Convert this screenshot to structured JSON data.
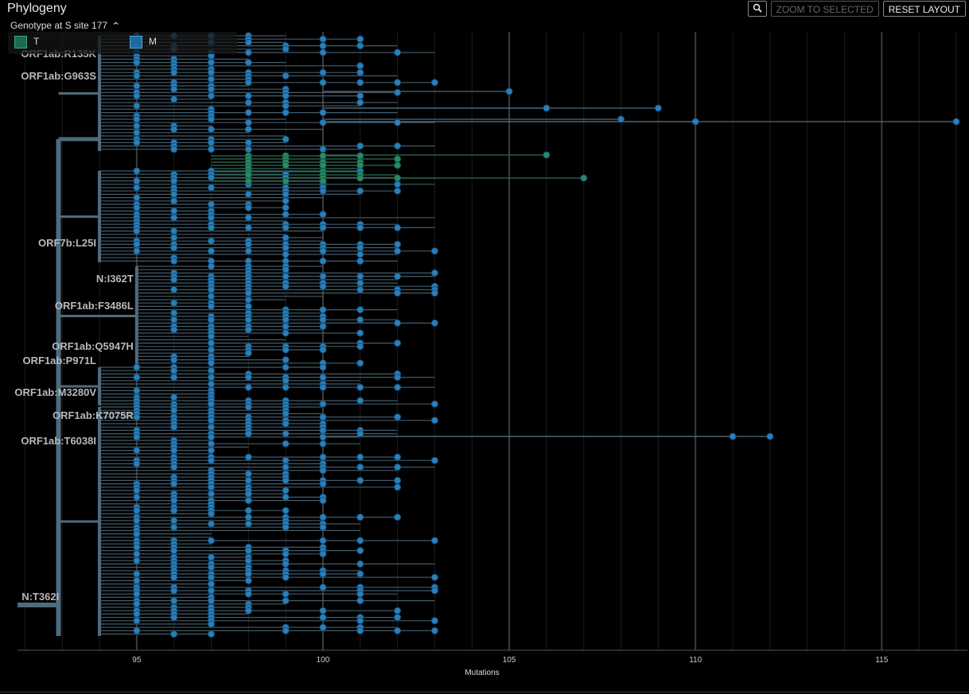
{
  "panel": {
    "title": "Phylogeny",
    "zoom_icon": "magnifier-icon",
    "zoom_to_selected_label": "ZOOM TO SELECTED",
    "reset_layout_label": "RESET LAYOUT"
  },
  "legend": {
    "title": "Genotype at S site 177",
    "toggle_icon": "chevron-up-icon",
    "items": [
      {
        "label": "T",
        "color": "#1b6b4f"
      },
      {
        "label": "M",
        "color": "#1f6aa0"
      }
    ]
  },
  "chart_data": {
    "type": "scatter",
    "xlabel": "Mutations",
    "xlim": [
      91.8,
      117.3
    ],
    "x_ticks": [
      95,
      100,
      105,
      110,
      115
    ],
    "grid": true,
    "colors": {
      "M": "#2c7fb8",
      "T": "#2a8a66",
      "branch": "#4f6b7d",
      "background": "#000000"
    },
    "branch_labels": [
      {
        "label": "ORF1ab:R135K",
        "x": 94
      },
      {
        "label": "ORF1ab:G963S",
        "x": 94
      },
      {
        "label": "ORF7b:L25I",
        "x": 94
      },
      {
        "label": "N:I362T",
        "x": 95
      },
      {
        "label": "ORF1ab:F3486L",
        "x": 95
      },
      {
        "label": "ORF1ab:Q5947H",
        "x": 95
      },
      {
        "label": "ORF1ab:P971L",
        "x": 94
      },
      {
        "label": "ORF1ab:M3280V",
        "x": 94
      },
      {
        "label": "ORF1ab:K7075R",
        "x": 95
      },
      {
        "label": "ORF1ab:T6038I",
        "x": 94
      },
      {
        "label": "N:T362I",
        "x": 93
      }
    ],
    "notable_tips": [
      {
        "x": 117,
        "genotype": "M"
      },
      {
        "x": 112,
        "genotype": "M"
      },
      {
        "x": 111,
        "genotype": "M"
      },
      {
        "x": 110,
        "genotype": "M"
      },
      {
        "x": 109,
        "genotype": "M"
      },
      {
        "x": 108,
        "genotype": "M"
      },
      {
        "x": 107,
        "genotype": "T"
      },
      {
        "x": 106,
        "genotype": "T"
      },
      {
        "x": 106,
        "genotype": "M"
      },
      {
        "x": 105,
        "genotype": "M"
      }
    ]
  }
}
